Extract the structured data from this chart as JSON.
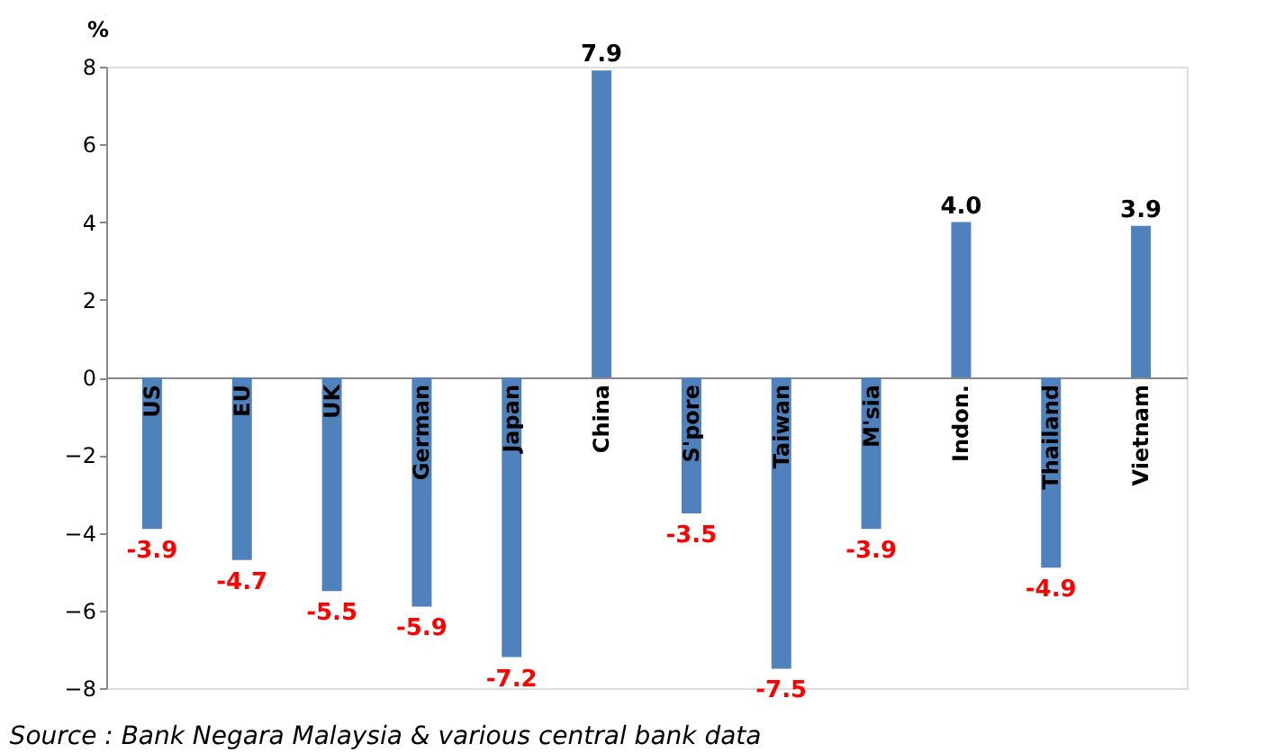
{
  "chart_data": {
    "type": "bar",
    "ylabel": "%",
    "categories": [
      "US",
      "EU",
      "UK",
      "German",
      "Japan",
      "China",
      "S'pore",
      "Taiwan",
      "M'sia",
      "Indon.",
      "Thailand",
      "Vietnam"
    ],
    "values": [
      -3.9,
      -4.7,
      -5.5,
      -5.9,
      -7.2,
      7.9,
      -3.5,
      -7.5,
      -3.9,
      4.0,
      -4.9,
      3.9
    ],
    "color": "#4f81bd",
    "value_labels": [
      "-3.9",
      "-4.7",
      "-5.5",
      "-5.9",
      "-7.2",
      "7.9",
      "-3.5",
      "-7.5",
      "-3.9",
      "4.0",
      "-4.9",
      "3.9"
    ],
    "ylim": [
      -8,
      8
    ],
    "yticks": [
      -8,
      -6,
      -4,
      -2,
      0,
      2,
      4,
      6,
      8
    ],
    "grid": false,
    "annotations": [
      "Source : Bank Negara Malaysia & various central bank data"
    ]
  }
}
